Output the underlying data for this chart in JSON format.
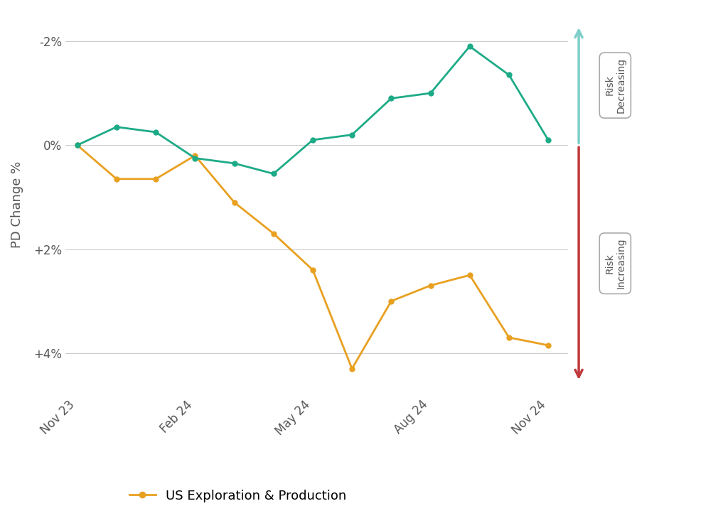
{
  "ep_x": [
    0,
    1,
    2,
    3,
    4,
    5,
    6,
    7,
    8,
    9,
    10,
    11,
    12
  ],
  "ep_y": [
    0.0,
    0.65,
    0.65,
    0.2,
    1.1,
    1.7,
    2.4,
    4.3,
    3.0,
    2.7,
    2.5,
    3.7,
    3.85
  ],
  "oed_x": [
    0,
    1,
    2,
    3,
    4,
    5,
    6,
    7,
    8,
    9,
    10,
    11,
    12
  ],
  "oed_y": [
    0.0,
    -0.35,
    -0.25,
    0.25,
    0.35,
    0.55,
    -0.1,
    -0.2,
    -0.9,
    -1.0,
    -1.9,
    -1.35,
    -0.1
  ],
  "ep_color": "#E8A020",
  "oed_color": "#1DAB87",
  "ylabel": "PD Change %",
  "x_tick_positions": [
    0,
    3,
    6,
    9,
    12
  ],
  "x_tick_labels": [
    "Nov 23",
    "Feb 24",
    "May 24",
    "Aug 24",
    "Nov 24"
  ],
  "yticks": [
    -2.0,
    0.0,
    2.0,
    4.0
  ],
  "ytick_labels": [
    "-2%",
    "0%",
    "+2%",
    "+4%"
  ],
  "ylim_bottom": 4.8,
  "ylim_top": -2.5,
  "xlim_left": -0.3,
  "xlim_right": 12.5,
  "bg_color": "#ffffff",
  "grid_color": "#cccccc",
  "axis_label_fontsize": 13,
  "tick_fontsize": 12,
  "legend_fontsize": 13,
  "risk_dec_color": "#7ECECA",
  "risk_inc_color": "#C0393B",
  "ep_label": "US Exploration & Production"
}
